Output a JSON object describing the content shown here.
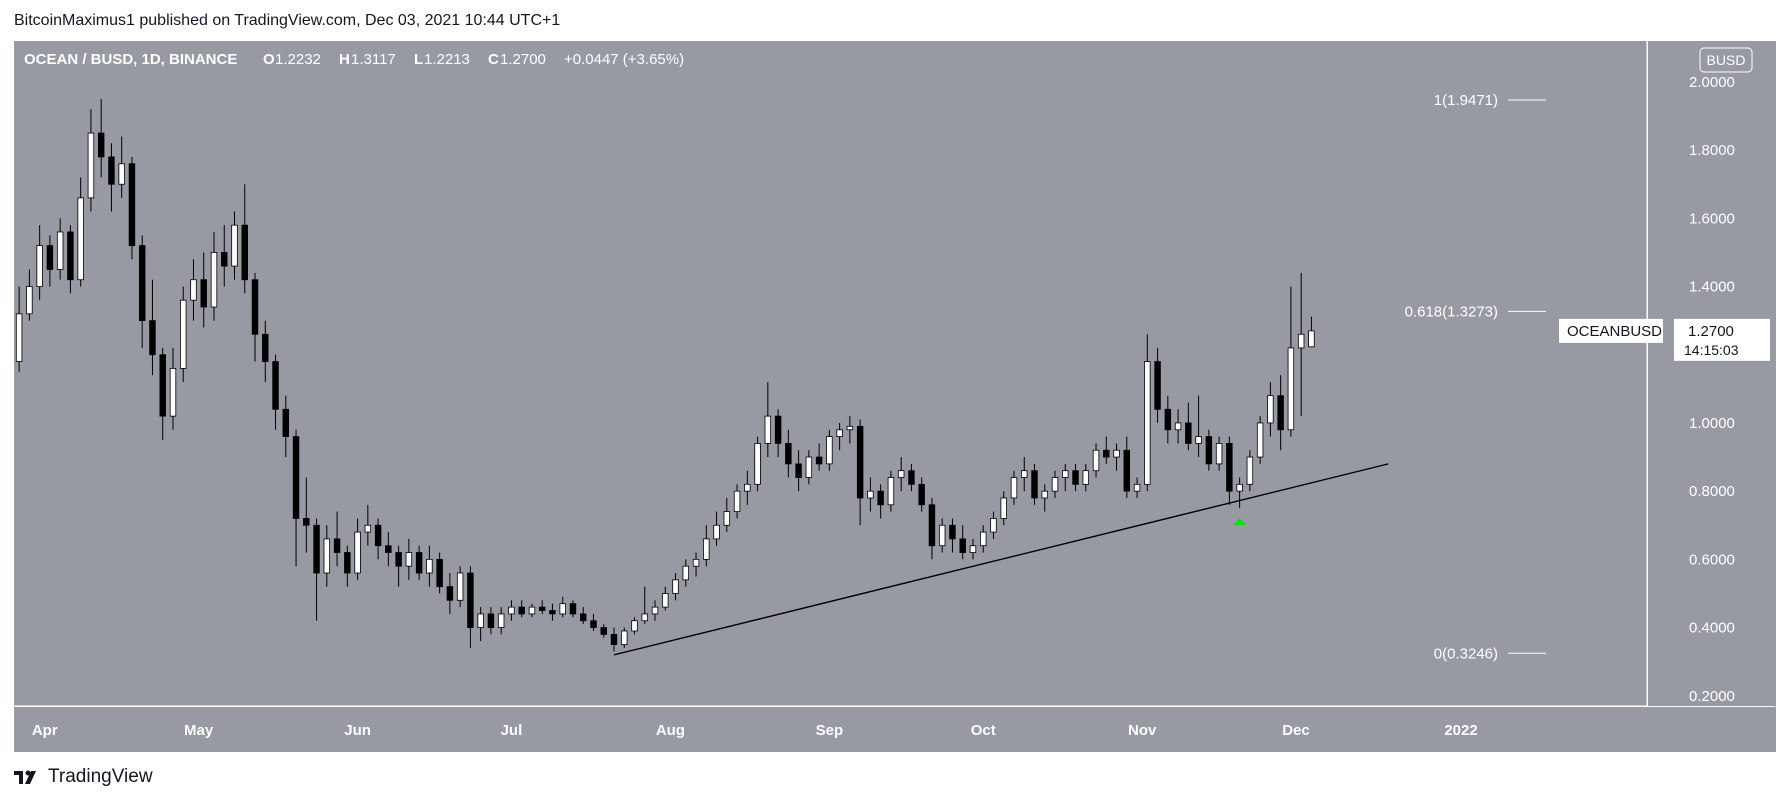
{
  "publisher_line": "BitcoinMaximus1 published on TradingView.com, Dec 03, 2021 10:44 UTC+1",
  "footer": {
    "brand": "TradingView"
  },
  "chart_data": {
    "type": "candlestick",
    "symbol_line": "OCEAN / BUSD, 1D, BINANCE",
    "ohlc_readout": {
      "O": "1.2232",
      "H": "1.3117",
      "L": "1.2213",
      "C": "1.2700",
      "change": "+0.0447 (+3.65%)"
    },
    "currency_badge": "BUSD",
    "price_label": {
      "symbol": "OCEANBUSD",
      "price": "1.2700",
      "countdown": "14:15:03",
      "value": 1.27
    },
    "y_ticks": [
      "2.0000",
      "1.8000",
      "1.6000",
      "1.4000",
      "1.2000",
      "1.0000",
      "0.8000",
      "0.6000",
      "0.4000",
      "0.2000"
    ],
    "ylim": [
      0.17,
      2.12
    ],
    "x_ticks": [
      "Apr",
      "May",
      "Jun",
      "Jul",
      "Aug",
      "Sep",
      "Oct",
      "Nov",
      "Dec",
      "2022"
    ],
    "x_tick_dates": [
      "2021-04-01",
      "2021-05-01",
      "2021-06-01",
      "2021-07-01",
      "2021-08-01",
      "2021-09-01",
      "2021-10-01",
      "2021-11-01",
      "2021-12-01",
      "2022-01-01"
    ],
    "x_range": [
      "2021-03-26",
      "2022-01-01"
    ],
    "fib_levels": [
      {
        "label": "1(1.9471)",
        "value": 1.9471
      },
      {
        "label": "0.618(1.3273)",
        "value": 1.3273
      },
      {
        "label": "0(0.3246)",
        "value": 0.3246
      }
    ],
    "trendline": {
      "start": {
        "date": "2021-07-21",
        "value": 0.32
      },
      "end": {
        "date": "2021-12-19",
        "value": 0.88
      }
    },
    "marker": {
      "shape": "up-arrow",
      "date": "2021-11-19",
      "value": 0.71,
      "color": "#00e600"
    },
    "ohlc": [
      [
        "2021-03-26",
        1.18,
        1.4,
        1.15,
        1.32
      ],
      [
        "2021-03-28",
        1.32,
        1.45,
        1.3,
        1.4
      ],
      [
        "2021-03-30",
        1.4,
        1.58,
        1.36,
        1.52
      ],
      [
        "2021-04-01",
        1.52,
        1.55,
        1.4,
        1.45
      ],
      [
        "2021-04-03",
        1.45,
        1.6,
        1.42,
        1.56
      ],
      [
        "2021-04-05",
        1.56,
        1.58,
        1.38,
        1.42
      ],
      [
        "2021-04-07",
        1.42,
        1.72,
        1.4,
        1.66
      ],
      [
        "2021-04-09",
        1.66,
        1.92,
        1.62,
        1.85
      ],
      [
        "2021-04-11",
        1.85,
        1.95,
        1.72,
        1.78
      ],
      [
        "2021-04-13",
        1.78,
        1.82,
        1.62,
        1.7
      ],
      [
        "2021-04-15",
        1.7,
        1.84,
        1.66,
        1.76
      ],
      [
        "2021-04-17",
        1.76,
        1.78,
        1.48,
        1.52
      ],
      [
        "2021-04-19",
        1.52,
        1.55,
        1.22,
        1.3
      ],
      [
        "2021-04-21",
        1.3,
        1.42,
        1.14,
        1.2
      ],
      [
        "2021-04-23",
        1.2,
        1.22,
        0.95,
        1.02
      ],
      [
        "2021-04-25",
        1.02,
        1.22,
        0.98,
        1.16
      ],
      [
        "2021-04-27",
        1.16,
        1.4,
        1.12,
        1.36
      ],
      [
        "2021-04-29",
        1.36,
        1.48,
        1.3,
        1.42
      ],
      [
        "2021-05-01",
        1.42,
        1.5,
        1.28,
        1.34
      ],
      [
        "2021-05-03",
        1.34,
        1.56,
        1.3,
        1.5
      ],
      [
        "2021-05-05",
        1.5,
        1.58,
        1.4,
        1.46
      ],
      [
        "2021-05-07",
        1.46,
        1.62,
        1.42,
        1.58
      ],
      [
        "2021-05-09",
        1.58,
        1.7,
        1.38,
        1.42
      ],
      [
        "2021-05-11",
        1.42,
        1.44,
        1.18,
        1.26
      ],
      [
        "2021-05-13",
        1.26,
        1.3,
        1.12,
        1.18
      ],
      [
        "2021-05-15",
        1.18,
        1.2,
        0.98,
        1.04
      ],
      [
        "2021-05-17",
        1.04,
        1.08,
        0.9,
        0.96
      ],
      [
        "2021-05-19",
        0.96,
        0.98,
        0.58,
        0.72
      ],
      [
        "2021-05-21",
        0.72,
        0.84,
        0.62,
        0.7
      ],
      [
        "2021-05-23",
        0.7,
        0.72,
        0.42,
        0.56
      ],
      [
        "2021-05-25",
        0.56,
        0.7,
        0.52,
        0.66
      ],
      [
        "2021-05-27",
        0.66,
        0.74,
        0.58,
        0.62
      ],
      [
        "2021-05-29",
        0.62,
        0.64,
        0.52,
        0.56
      ],
      [
        "2021-05-31",
        0.56,
        0.72,
        0.54,
        0.68
      ],
      [
        "2021-06-02",
        0.68,
        0.76,
        0.64,
        0.7
      ],
      [
        "2021-06-04",
        0.7,
        0.72,
        0.6,
        0.64
      ],
      [
        "2021-06-06",
        0.64,
        0.68,
        0.58,
        0.62
      ],
      [
        "2021-06-08",
        0.62,
        0.64,
        0.52,
        0.58
      ],
      [
        "2021-06-10",
        0.58,
        0.66,
        0.54,
        0.62
      ],
      [
        "2021-06-12",
        0.62,
        0.64,
        0.54,
        0.56
      ],
      [
        "2021-06-14",
        0.56,
        0.64,
        0.52,
        0.6
      ],
      [
        "2021-06-16",
        0.6,
        0.62,
        0.5,
        0.52
      ],
      [
        "2021-06-18",
        0.52,
        0.56,
        0.44,
        0.48
      ],
      [
        "2021-06-20",
        0.48,
        0.58,
        0.46,
        0.56
      ],
      [
        "2021-06-22",
        0.56,
        0.58,
        0.34,
        0.4
      ],
      [
        "2021-06-24",
        0.4,
        0.46,
        0.36,
        0.44
      ],
      [
        "2021-06-26",
        0.44,
        0.46,
        0.38,
        0.4
      ],
      [
        "2021-06-28",
        0.4,
        0.46,
        0.38,
        0.44
      ],
      [
        "2021-06-30",
        0.44,
        0.48,
        0.42,
        0.46
      ],
      [
        "2021-07-02",
        0.46,
        0.48,
        0.43,
        0.44
      ],
      [
        "2021-07-04",
        0.44,
        0.47,
        0.43,
        0.46
      ],
      [
        "2021-07-06",
        0.46,
        0.48,
        0.44,
        0.45
      ],
      [
        "2021-07-08",
        0.45,
        0.47,
        0.42,
        0.44
      ],
      [
        "2021-07-10",
        0.44,
        0.49,
        0.43,
        0.47
      ],
      [
        "2021-07-12",
        0.47,
        0.48,
        0.43,
        0.44
      ],
      [
        "2021-07-14",
        0.44,
        0.46,
        0.41,
        0.42
      ],
      [
        "2021-07-16",
        0.42,
        0.44,
        0.39,
        0.4
      ],
      [
        "2021-07-18",
        0.4,
        0.41,
        0.37,
        0.38
      ],
      [
        "2021-07-20",
        0.38,
        0.4,
        0.33,
        0.35
      ],
      [
        "2021-07-22",
        0.35,
        0.4,
        0.34,
        0.39
      ],
      [
        "2021-07-24",
        0.39,
        0.43,
        0.38,
        0.42
      ],
      [
        "2021-07-26",
        0.42,
        0.52,
        0.41,
        0.44
      ],
      [
        "2021-07-28",
        0.44,
        0.48,
        0.42,
        0.46
      ],
      [
        "2021-07-30",
        0.46,
        0.52,
        0.45,
        0.5
      ],
      [
        "2021-08-01",
        0.5,
        0.56,
        0.48,
        0.54
      ],
      [
        "2021-08-03",
        0.54,
        0.6,
        0.52,
        0.58
      ],
      [
        "2021-08-05",
        0.58,
        0.62,
        0.55,
        0.6
      ],
      [
        "2021-08-07",
        0.6,
        0.7,
        0.58,
        0.66
      ],
      [
        "2021-08-09",
        0.66,
        0.74,
        0.64,
        0.7
      ],
      [
        "2021-08-11",
        0.7,
        0.78,
        0.68,
        0.74
      ],
      [
        "2021-08-13",
        0.74,
        0.82,
        0.72,
        0.8
      ],
      [
        "2021-08-15",
        0.8,
        0.86,
        0.76,
        0.82
      ],
      [
        "2021-08-17",
        0.82,
        0.96,
        0.8,
        0.94
      ],
      [
        "2021-08-19",
        0.94,
        1.12,
        0.9,
        1.02
      ],
      [
        "2021-08-21",
        1.02,
        1.04,
        0.9,
        0.94
      ],
      [
        "2021-08-23",
        0.94,
        0.98,
        0.84,
        0.88
      ],
      [
        "2021-08-25",
        0.88,
        0.92,
        0.8,
        0.84
      ],
      [
        "2021-08-27",
        0.84,
        0.92,
        0.82,
        0.9
      ],
      [
        "2021-08-29",
        0.9,
        0.94,
        0.86,
        0.88
      ],
      [
        "2021-08-31",
        0.88,
        0.98,
        0.86,
        0.96
      ],
      [
        "2021-09-02",
        0.96,
        1.0,
        0.92,
        0.98
      ],
      [
        "2021-09-04",
        0.98,
        1.02,
        0.94,
        0.99
      ],
      [
        "2021-09-06",
        0.99,
        1.01,
        0.7,
        0.78
      ],
      [
        "2021-09-08",
        0.78,
        0.84,
        0.74,
        0.8
      ],
      [
        "2021-09-10",
        0.8,
        0.82,
        0.72,
        0.76
      ],
      [
        "2021-09-12",
        0.76,
        0.86,
        0.74,
        0.84
      ],
      [
        "2021-09-14",
        0.84,
        0.9,
        0.8,
        0.86
      ],
      [
        "2021-09-16",
        0.86,
        0.88,
        0.8,
        0.82
      ],
      [
        "2021-09-18",
        0.82,
        0.84,
        0.74,
        0.76
      ],
      [
        "2021-09-20",
        0.76,
        0.78,
        0.6,
        0.64
      ],
      [
        "2021-09-22",
        0.64,
        0.72,
        0.62,
        0.7
      ],
      [
        "2021-09-24",
        0.7,
        0.72,
        0.62,
        0.66
      ],
      [
        "2021-09-26",
        0.66,
        0.7,
        0.6,
        0.62
      ],
      [
        "2021-09-28",
        0.62,
        0.66,
        0.6,
        0.64
      ],
      [
        "2021-09-30",
        0.64,
        0.7,
        0.62,
        0.68
      ],
      [
        "2021-10-02",
        0.68,
        0.74,
        0.66,
        0.72
      ],
      [
        "2021-10-04",
        0.72,
        0.8,
        0.7,
        0.78
      ],
      [
        "2021-10-06",
        0.78,
        0.86,
        0.76,
        0.84
      ],
      [
        "2021-10-08",
        0.84,
        0.9,
        0.8,
        0.86
      ],
      [
        "2021-10-10",
        0.86,
        0.88,
        0.76,
        0.78
      ],
      [
        "2021-10-12",
        0.78,
        0.82,
        0.74,
        0.8
      ],
      [
        "2021-10-14",
        0.8,
        0.86,
        0.78,
        0.84
      ],
      [
        "2021-10-16",
        0.84,
        0.88,
        0.8,
        0.86
      ],
      [
        "2021-10-18",
        0.86,
        0.88,
        0.8,
        0.82
      ],
      [
        "2021-10-20",
        0.82,
        0.88,
        0.8,
        0.86
      ],
      [
        "2021-10-22",
        0.86,
        0.94,
        0.84,
        0.92
      ],
      [
        "2021-10-24",
        0.92,
        0.96,
        0.88,
        0.9
      ],
      [
        "2021-10-26",
        0.9,
        0.94,
        0.86,
        0.92
      ],
      [
        "2021-10-28",
        0.92,
        0.96,
        0.78,
        0.8
      ],
      [
        "2021-10-30",
        0.8,
        0.84,
        0.78,
        0.82
      ],
      [
        "2021-11-01",
        0.82,
        1.26,
        0.8,
        1.18
      ],
      [
        "2021-11-03",
        1.18,
        1.22,
        1.0,
        1.04
      ],
      [
        "2021-11-05",
        1.04,
        1.08,
        0.94,
        0.98
      ],
      [
        "2021-11-07",
        0.98,
        1.04,
        0.94,
        1.0
      ],
      [
        "2021-11-09",
        1.0,
        1.06,
        0.92,
        0.94
      ],
      [
        "2021-11-11",
        0.94,
        1.08,
        0.9,
        0.96
      ],
      [
        "2021-11-13",
        0.96,
        0.98,
        0.86,
        0.88
      ],
      [
        "2021-11-15",
        0.88,
        0.96,
        0.86,
        0.94
      ],
      [
        "2021-11-17",
        0.94,
        0.96,
        0.76,
        0.8
      ],
      [
        "2021-11-19",
        0.8,
        0.84,
        0.75,
        0.82
      ],
      [
        "2021-11-21",
        0.82,
        0.92,
        0.8,
        0.9
      ],
      [
        "2021-11-23",
        0.9,
        1.02,
        0.88,
        1.0
      ],
      [
        "2021-11-25",
        1.0,
        1.12,
        0.96,
        1.08
      ],
      [
        "2021-11-27",
        1.08,
        1.14,
        0.92,
        0.98
      ],
      [
        "2021-11-29",
        0.98,
        1.4,
        0.96,
        1.22
      ],
      [
        "2021-12-01",
        1.22,
        1.44,
        1.02,
        1.26
      ],
      [
        "2021-12-03",
        1.2232,
        1.3117,
        1.2213,
        1.27
      ]
    ]
  },
  "colors": {
    "plot_bg": "#979aa3",
    "bull": "#ffffff",
    "bear": "#000000",
    "wick": "#000000",
    "trendline": "#000000",
    "fib": "#ffffff",
    "marker": "#00e600"
  }
}
